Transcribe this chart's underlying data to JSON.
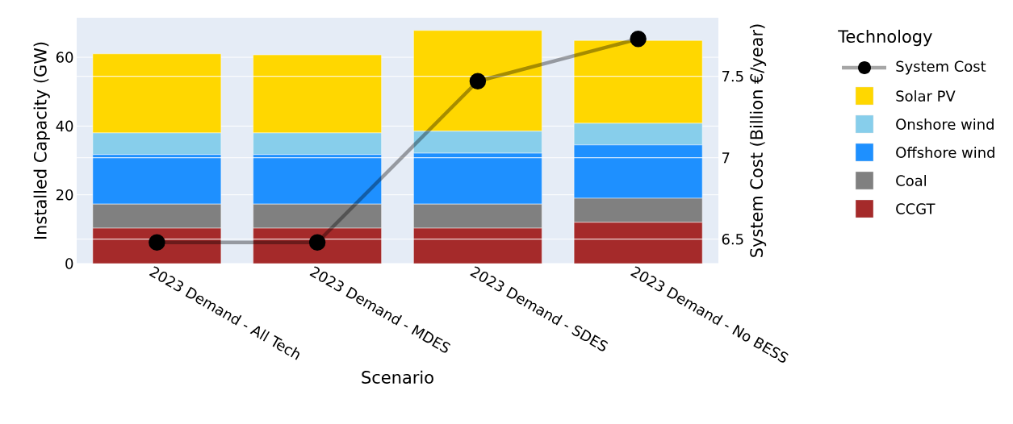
{
  "chart_data": {
    "type": "bar",
    "stacked": true,
    "xlabel": "Scenario",
    "ylabel": "Installed Capacity (GW)",
    "y2label": "System Cost (Billion €/year)",
    "legend_title": "Technology",
    "legend": "right",
    "grid": true,
    "categories": [
      "2023 Demand - All Tech",
      "2023 Demand - MDES",
      "2023 Demand - SDES",
      "2023 Demand - No BESS"
    ],
    "ylim": [
      0,
      71.5
    ],
    "yticks": [
      0,
      20,
      40,
      60
    ],
    "y2lim": [
      6.35,
      7.86
    ],
    "y2ticks": [
      6.5,
      7,
      7.5
    ],
    "series": [
      {
        "name": "CCGT",
        "color": "#a52a2a",
        "values": [
          10.3,
          10.3,
          10.3,
          12.0
        ]
      },
      {
        "name": "Coal",
        "color": "#808080",
        "values": [
          7.0,
          7.0,
          7.0,
          7.0
        ]
      },
      {
        "name": "Offshore wind",
        "color": "#1e90ff",
        "values": [
          14.4,
          14.4,
          14.8,
          15.5
        ]
      },
      {
        "name": "Onshore wind",
        "color": "#87ceeb",
        "values": [
          6.3,
          6.3,
          6.4,
          6.3
        ]
      },
      {
        "name": "Solar PV",
        "color": "#ffd700",
        "values": [
          23.0,
          22.7,
          29.3,
          24.1
        ]
      },
      {
        "name": "System Cost",
        "type": "line",
        "axis": "y2",
        "marker": "circle",
        "color": "#000000",
        "values": [
          6.48,
          6.48,
          7.47,
          7.73
        ]
      }
    ]
  }
}
